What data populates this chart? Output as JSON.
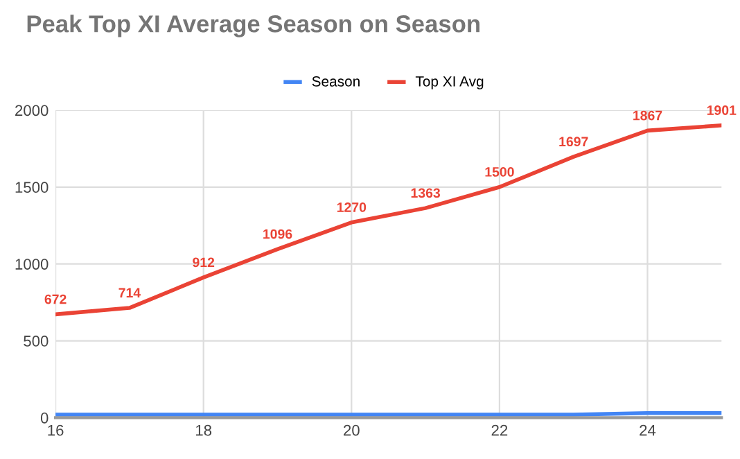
{
  "chart_data": {
    "type": "line",
    "title": "Peak Top XI Average Season on Season",
    "x": [
      16,
      17,
      18,
      19,
      20,
      21,
      22,
      23,
      24,
      25
    ],
    "series": [
      {
        "name": "Season",
        "color": "#4285f4",
        "values": [
          20,
          20,
          20,
          20,
          20,
          20,
          20,
          20,
          30,
          30
        ]
      },
      {
        "name": "Top XI Avg",
        "color": "#ea4335",
        "values": [
          672,
          714,
          912,
          1096,
          1270,
          1363,
          1500,
          1697,
          1867,
          1901
        ],
        "value_labels": [
          "672",
          "714",
          "912",
          "1096",
          "1270",
          "1363",
          "1500",
          "1697",
          "1867",
          "1901"
        ]
      }
    ],
    "xlim": [
      16,
      25
    ],
    "xticks": [
      16,
      18,
      20,
      22,
      24
    ],
    "ylim": [
      0,
      2000
    ],
    "yticks": [
      0,
      500,
      1000,
      1500,
      2000
    ],
    "grid": true,
    "legend": "top"
  }
}
